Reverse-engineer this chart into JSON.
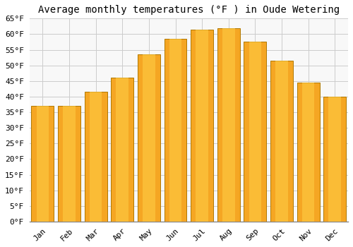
{
  "title": "Average monthly temperatures (°F ) in Oude Wetering",
  "months": [
    "Jan",
    "Feb",
    "Mar",
    "Apr",
    "May",
    "Jun",
    "Jul",
    "Aug",
    "Sep",
    "Oct",
    "Nov",
    "Dec"
  ],
  "values": [
    37,
    37,
    41.5,
    46,
    53.5,
    58.5,
    61.5,
    62,
    57.5,
    51.5,
    44.5,
    40
  ],
  "bar_color": "#FFA500",
  "bar_edge_color": "#CC7700",
  "background_color": "#FFFFFF",
  "plot_bg_color": "#F8F8F8",
  "grid_color": "#CCCCCC",
  "ylim": [
    0,
    65
  ],
  "yticks": [
    0,
    5,
    10,
    15,
    20,
    25,
    30,
    35,
    40,
    45,
    50,
    55,
    60,
    65
  ],
  "title_fontsize": 10,
  "tick_fontsize": 8,
  "font_family": "monospace"
}
